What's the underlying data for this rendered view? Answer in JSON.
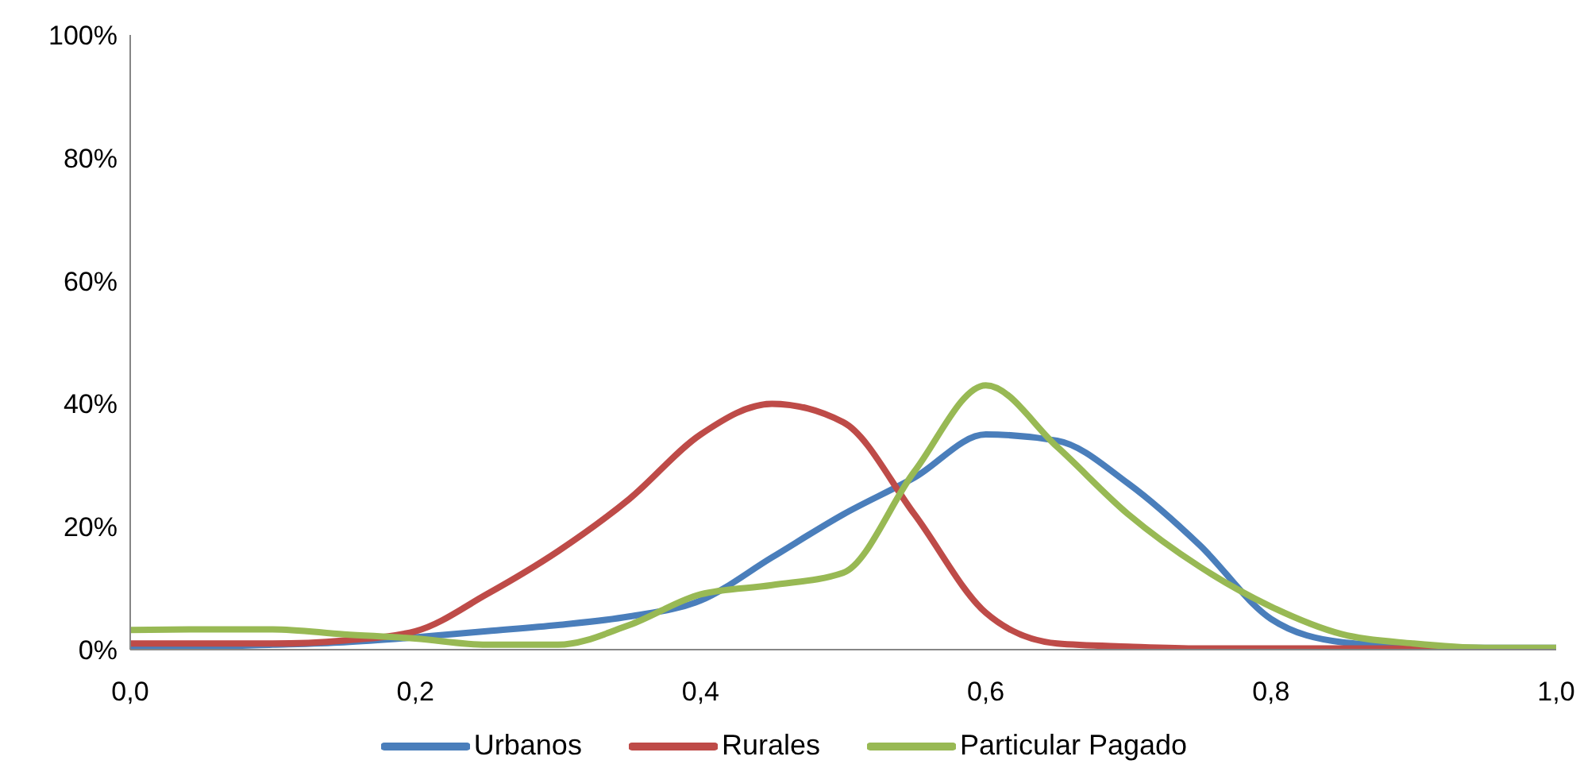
{
  "chart_data": {
    "type": "line",
    "x": [
      0,
      0.05,
      0.1,
      0.15,
      0.2,
      0.25,
      0.3,
      0.35,
      0.4,
      0.45,
      0.5,
      0.55,
      0.6,
      0.65,
      0.7,
      0.75,
      0.8,
      0.85,
      0.9,
      0.95,
      1.0
    ],
    "series": [
      {
        "name": "Urbanos",
        "color": "#4a7ebb",
        "values": [
          0.5,
          0.5,
          0.8,
          1.2,
          2,
          3,
          4,
          5.4,
          8,
          15,
          22,
          28,
          35,
          34,
          27,
          17,
          5,
          1.2,
          0.5,
          0.3,
          0.3
        ]
      },
      {
        "name": "Rurales",
        "color": "#be4b48",
        "values": [
          1,
          1,
          1,
          1.5,
          3,
          9,
          16,
          24.5,
          35,
          40,
          37,
          22,
          6,
          1,
          0.5,
          0.2,
          0.2,
          0.2,
          0.2,
          0.2,
          0.2
        ]
      },
      {
        "name": "Particular Pagado",
        "color": "#98b954",
        "values": [
          3.2,
          3.3,
          3.3,
          2.5,
          1.8,
          0.8,
          0.8,
          4,
          9,
          10.5,
          12.5,
          29,
          43,
          33,
          22,
          13.5,
          7,
          2.5,
          1,
          0.3,
          0.3
        ]
      }
    ],
    "xlim": [
      0,
      1
    ],
    "xticks": [
      {
        "value": 0,
        "label": "0,0"
      },
      {
        "value": 0.2,
        "label": "0,2"
      },
      {
        "value": 0.4,
        "label": "0,4"
      },
      {
        "value": 0.6,
        "label": "0,6"
      },
      {
        "value": 0.8,
        "label": "0,8"
      },
      {
        "value": 1,
        "label": "1,0"
      }
    ],
    "ylim": [
      0,
      100
    ],
    "yticks": [
      {
        "value": 0,
        "label": "0%"
      },
      {
        "value": 20,
        "label": "20%"
      },
      {
        "value": 40,
        "label": "40%"
      },
      {
        "value": 60,
        "label": "60%"
      },
      {
        "value": 80,
        "label": "80%"
      },
      {
        "value": 100,
        "label": "100%"
      }
    ],
    "grid": false,
    "legend": "bottom",
    "marker": "none",
    "line_style": "solid"
  }
}
